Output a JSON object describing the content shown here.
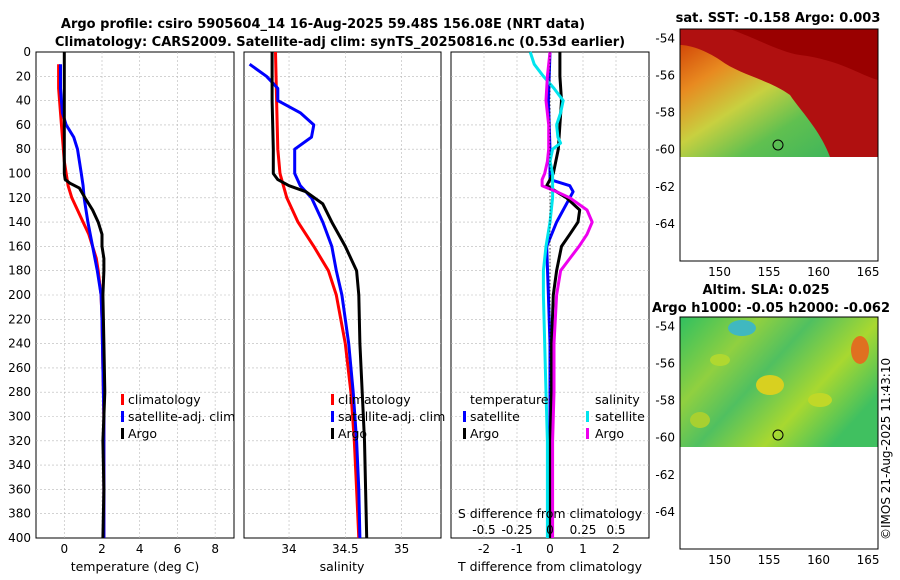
{
  "title_line1": "Argo profile: csiro 5905604_14 16-Aug-2025 59.48S 156.08E (NRT data)",
  "title_line2": "Climatology: CARS2009. Satellite-adj clim: synTS_20250816.nc (0.53d earlier)",
  "footer": "©IMOS 21-Aug-2025 11:43:10",
  "colors": {
    "clim": "#ff0000",
    "sat": "#0000ff",
    "argo": "#000000",
    "sal_sat": "#00e5ee",
    "sal_argo": "#ee00ee"
  },
  "chart_data": [
    {
      "id": "temperature",
      "type": "line",
      "xlabel": "temperature (deg C)",
      "xlim": [
        -1.5,
        9
      ],
      "xticks": [
        0,
        2,
        4,
        6,
        8
      ],
      "ylim": [
        0,
        400
      ],
      "yticks": [
        0,
        20,
        40,
        60,
        80,
        100,
        120,
        140,
        160,
        180,
        200,
        220,
        240,
        260,
        280,
        300,
        320,
        340,
        360,
        380,
        400
      ],
      "legend": [
        "climatology",
        "satellite-adj. clim",
        "Argo"
      ],
      "series": [
        {
          "name": "climatology",
          "color": "#ff0000",
          "depth": [
            10,
            30,
            50,
            70,
            90,
            100,
            110,
            120,
            130,
            140,
            150,
            160,
            170,
            180,
            200,
            220,
            260,
            300,
            340,
            380,
            400
          ],
          "values": [
            -0.3,
            -0.3,
            -0.2,
            -0.1,
            0,
            0.1,
            0.2,
            0.4,
            0.7,
            1.0,
            1.3,
            1.5,
            1.7,
            1.8,
            1.95,
            2.0,
            2.05,
            2.1,
            2.1,
            2.1,
            2.1
          ]
        },
        {
          "name": "satellite-adj. clim",
          "color": "#0000ff",
          "depth": [
            10,
            30,
            50,
            60,
            70,
            80,
            90,
            100,
            110,
            120,
            140,
            160,
            180,
            200,
            220,
            260,
            300,
            340,
            380,
            400
          ],
          "values": [
            -0.2,
            -0.2,
            -0.1,
            0.1,
            0.5,
            0.7,
            0.8,
            0.9,
            1.0,
            1.05,
            1.25,
            1.5,
            1.75,
            1.95,
            2.0,
            2.05,
            2.1,
            2.1,
            2.1,
            2.1
          ]
        },
        {
          "name": "Argo",
          "color": "#000000",
          "depth": [
            0,
            20,
            40,
            60,
            80,
            100,
            105,
            108,
            112,
            120,
            130,
            140,
            150,
            160,
            170,
            180,
            200,
            240,
            280,
            300,
            320,
            360,
            400
          ],
          "values": [
            0.0,
            0.0,
            0.0,
            0.0,
            0.0,
            0.0,
            0.05,
            0.3,
            0.8,
            1.1,
            1.5,
            1.8,
            2.0,
            2.0,
            2.1,
            2.1,
            2.05,
            2.1,
            2.15,
            2.1,
            2.05,
            2.1,
            2.05
          ]
        }
      ]
    },
    {
      "id": "salinity",
      "type": "line",
      "xlabel": "salinity",
      "xlim": [
        33.6,
        35.35
      ],
      "xticks": [
        34,
        34.5,
        35
      ],
      "xtick_labels": [
        "34",
        "34.5",
        "35"
      ],
      "ylim": [
        0,
        400
      ],
      "legend": [
        "climatology",
        "satellite-adj. clim",
        "Argo"
      ],
      "series": [
        {
          "name": "climatology",
          "color": "#ff0000",
          "depth": [
            0,
            40,
            80,
            100,
            120,
            140,
            160,
            180,
            200,
            240,
            280,
            320,
            360,
            400
          ],
          "values": [
            33.88,
            33.89,
            33.9,
            33.92,
            33.98,
            34.08,
            34.22,
            34.35,
            34.42,
            34.5,
            34.55,
            34.58,
            34.6,
            34.62
          ]
        },
        {
          "name": "satellite-adj. clim",
          "color": "#0000ff",
          "depth": [
            10,
            20,
            30,
            40,
            50,
            60,
            70,
            80,
            90,
            100,
            110,
            120,
            140,
            160,
            180,
            200,
            240,
            280,
            320,
            360,
            400
          ],
          "values": [
            33.65,
            33.8,
            33.9,
            33.9,
            34.1,
            34.22,
            34.2,
            34.05,
            34.05,
            34.05,
            34.1,
            34.2,
            34.3,
            34.38,
            34.42,
            34.47,
            34.53,
            34.57,
            34.6,
            34.62,
            34.63
          ]
        },
        {
          "name": "Argo",
          "color": "#000000",
          "depth": [
            0,
            40,
            80,
            100,
            105,
            110,
            115,
            125,
            140,
            160,
            180,
            200,
            240,
            280,
            320,
            360,
            400
          ],
          "values": [
            33.85,
            33.85,
            33.86,
            33.86,
            33.9,
            34.0,
            34.15,
            34.3,
            34.38,
            34.5,
            34.6,
            34.62,
            34.63,
            34.65,
            34.67,
            34.68,
            34.69
          ]
        }
      ]
    },
    {
      "id": "differences",
      "type": "line",
      "xlabel": "T difference from climatology",
      "top_label": "S difference from climatology",
      "xlim": [
        -3,
        3
      ],
      "xticks": [
        -2,
        -1,
        0,
        1,
        2
      ],
      "xtick_labels": [
        "-2",
        "-1",
        "0",
        "1",
        "2"
      ],
      "top_ticks": [
        -0.5,
        -0.25,
        0,
        0.25,
        0.5
      ],
      "top_tick_labels": [
        "-0.5",
        "-0.25",
        "0",
        "0.25",
        "0.5"
      ],
      "s_scale": 4,
      "ylim": [
        0,
        400
      ],
      "legend_left_title": "temperature",
      "legend_right_title": "salinity",
      "legend": [
        "satellite",
        "Argo",
        "satellite",
        "Argo"
      ],
      "series": [
        {
          "name": "T satellite",
          "color": "#0000ff",
          "depth": [
            0,
            40,
            80,
            100,
            105,
            110,
            115,
            120,
            140,
            160,
            200,
            240,
            280,
            320,
            360,
            400
          ],
          "values": [
            0.0,
            -0.05,
            0.0,
            0.0,
            0.0,
            0.6,
            0.7,
            0.6,
            0.2,
            -0.1,
            -0.05,
            0.0,
            0.0,
            0.0,
            0.0,
            0.0
          ]
        },
        {
          "name": "T Argo",
          "color": "#000000",
          "depth": [
            0,
            20,
            40,
            60,
            80,
            100,
            110,
            120,
            130,
            140,
            150,
            160,
            180,
            200,
            240,
            280,
            320,
            360,
            400
          ],
          "values": [
            0.3,
            0.3,
            0.35,
            0.3,
            0.25,
            0.1,
            -0.1,
            0.5,
            0.9,
            0.85,
            0.6,
            0.35,
            0.2,
            0.1,
            0.05,
            0.05,
            0.0,
            0.0,
            0.0
          ]
        },
        {
          "name": "S satellite",
          "color": "#00e5ee",
          "depth": [
            0,
            10,
            20,
            30,
            40,
            50,
            60,
            70,
            75,
            80,
            90,
            100,
            120,
            140,
            160,
            180,
            200,
            240,
            280,
            320,
            360,
            400
          ],
          "values": [
            -0.15,
            -0.12,
            -0.05,
            0.03,
            0.1,
            0.08,
            0.05,
            0.06,
            0.08,
            0.02,
            0.0,
            0.02,
            0.02,
            0.0,
            -0.03,
            -0.05,
            -0.05,
            -0.04,
            -0.03,
            -0.02,
            -0.02,
            -0.02
          ]
        },
        {
          "name": "S Argo",
          "color": "#ee00ee",
          "depth": [
            0,
            20,
            40,
            60,
            80,
            90,
            100,
            105,
            110,
            115,
            120,
            130,
            140,
            150,
            160,
            170,
            180,
            200,
            240,
            280,
            320,
            360,
            400
          ],
          "values": [
            0.0,
            -0.02,
            -0.03,
            -0.01,
            -0.01,
            -0.02,
            -0.04,
            -0.06,
            -0.06,
            0.05,
            0.15,
            0.28,
            0.32,
            0.28,
            0.22,
            0.15,
            0.08,
            0.05,
            0.03,
            0.03,
            0.02,
            0.02,
            0.02
          ]
        }
      ]
    },
    {
      "id": "sst_map",
      "type": "heatmap",
      "title": "sat. SST: -0.158 Argo: 0.003",
      "xlim": [
        146,
        166
      ],
      "ylim": [
        -66,
        -53.5
      ],
      "xticks": [
        150,
        155,
        160,
        165
      ],
      "yticks": [
        -54,
        -56,
        -58,
        -60,
        -62,
        -64
      ],
      "data_extent_lat": [
        -60,
        -53.5
      ],
      "profile_marker": {
        "lon": 156.08,
        "lat": -59.48
      }
    },
    {
      "id": "sla_map",
      "type": "heatmap",
      "title_line1": "Altim. SLA: 0.025",
      "title_line2": "Argo h1000: -0.05 h2000: -0.062",
      "xlim": [
        146,
        166
      ],
      "ylim": [
        -66,
        -53.5
      ],
      "xticks": [
        150,
        155,
        160,
        165
      ],
      "yticks": [
        -54,
        -56,
        -58,
        -60,
        -62,
        -64
      ],
      "data_extent_lat": [
        -60,
        -53.5
      ],
      "profile_marker": {
        "lon": 156.08,
        "lat": -59.48
      }
    }
  ]
}
